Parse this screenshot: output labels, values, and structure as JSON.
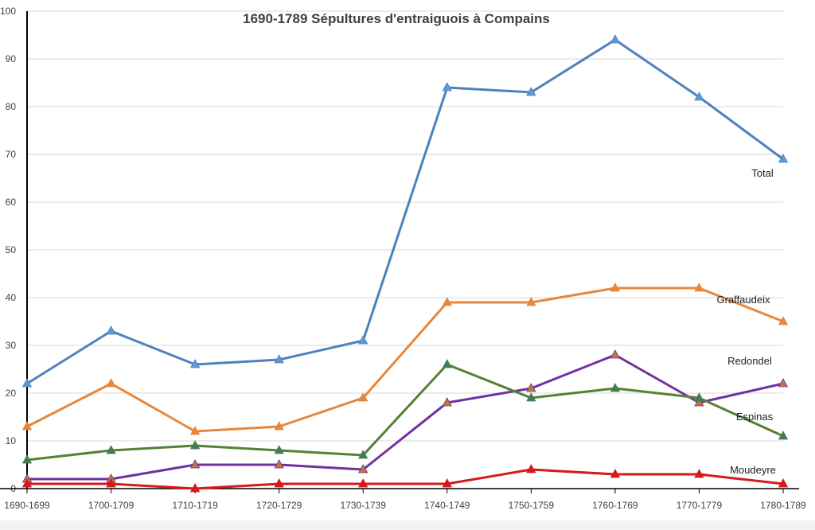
{
  "chart_data": {
    "type": "line",
    "title": "1690-1789 Sépultures d'entraiguois à Compains",
    "categories": [
      "1690-1699",
      "1700-1709",
      "1710-1719",
      "1720-1729",
      "1730-1739",
      "1740-1749",
      "1750-1759",
      "1760-1769",
      "1770-1779",
      "1780-1789"
    ],
    "ylim": [
      0,
      100
    ],
    "yticks": [
      0,
      10,
      20,
      30,
      40,
      50,
      60,
      70,
      80,
      90,
      100
    ],
    "grid": true,
    "legend": "inline-right",
    "series": [
      {
        "name": "Total",
        "color": "#4f81bd",
        "marker_color": "#5b9bd5",
        "values": [
          22,
          33,
          26,
          27,
          31,
          84,
          83,
          94,
          82,
          69
        ]
      },
      {
        "name": "Graffaudeix",
        "color": "#e8873a",
        "marker_color": "#e8873a",
        "values": [
          13,
          22,
          12,
          13,
          19,
          39,
          39,
          42,
          42,
          35
        ]
      },
      {
        "name": "Redondel",
        "color": "#7030a0",
        "marker_color": "#c07a2a",
        "values": [
          2,
          2,
          5,
          5,
          4,
          18,
          21,
          28,
          18,
          22
        ]
      },
      {
        "name": "Espinas",
        "color": "#548235",
        "marker_color": "#3e7a6a",
        "values": [
          6,
          8,
          9,
          8,
          7,
          26,
          19,
          21,
          19,
          11
        ]
      },
      {
        "name": "Moudeyre",
        "color": "#d7191c",
        "marker_color": "#d7191c",
        "values": [
          1,
          1,
          0,
          1,
          1,
          1,
          4,
          3,
          3,
          1
        ]
      }
    ]
  }
}
